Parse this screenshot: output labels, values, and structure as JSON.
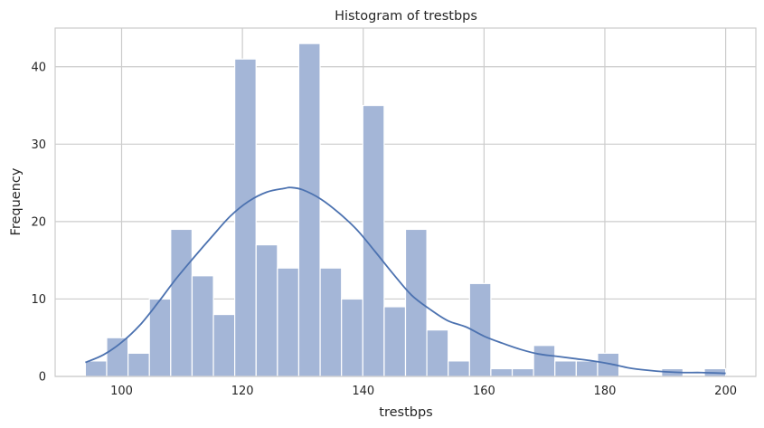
{
  "chart_data": {
    "type": "bar",
    "title": "Histogram of trestbps",
    "xlabel": "trestbps",
    "ylabel": "Frequency",
    "xlim": [
      89,
      205
    ],
    "ylim": [
      0,
      45
    ],
    "xticks": [
      100,
      120,
      140,
      160,
      180,
      200
    ],
    "yticks": [
      0,
      10,
      20,
      30,
      40
    ],
    "grid": true,
    "bin_width": 3.533,
    "bins": [
      {
        "x0": 94.0,
        "count": 2
      },
      {
        "x0": 97.53,
        "count": 5
      },
      {
        "x0": 101.07,
        "count": 3
      },
      {
        "x0": 104.6,
        "count": 10
      },
      {
        "x0": 108.13,
        "count": 19
      },
      {
        "x0": 111.67,
        "count": 13
      },
      {
        "x0": 115.2,
        "count": 8
      },
      {
        "x0": 118.73,
        "count": 41
      },
      {
        "x0": 122.27,
        "count": 17
      },
      {
        "x0": 125.8,
        "count": 14
      },
      {
        "x0": 129.33,
        "count": 43
      },
      {
        "x0": 132.87,
        "count": 14
      },
      {
        "x0": 136.4,
        "count": 10
      },
      {
        "x0": 139.93,
        "count": 35
      },
      {
        "x0": 143.47,
        "count": 9
      },
      {
        "x0": 147.0,
        "count": 19
      },
      {
        "x0": 150.53,
        "count": 6
      },
      {
        "x0": 154.07,
        "count": 2
      },
      {
        "x0": 157.6,
        "count": 12
      },
      {
        "x0": 161.13,
        "count": 1
      },
      {
        "x0": 164.67,
        "count": 1
      },
      {
        "x0": 168.2,
        "count": 4
      },
      {
        "x0": 171.73,
        "count": 2
      },
      {
        "x0": 175.27,
        "count": 2
      },
      {
        "x0": 178.8,
        "count": 3
      },
      {
        "x0": 182.33,
        "count": 0
      },
      {
        "x0": 185.87,
        "count": 0
      },
      {
        "x0": 189.4,
        "count": 1
      },
      {
        "x0": 192.93,
        "count": 0
      },
      {
        "x0": 196.47,
        "count": 1
      }
    ],
    "kde": {
      "x": [
        94,
        97,
        100,
        103,
        106,
        109,
        112,
        115,
        118,
        121,
        124,
        127,
        128,
        130,
        133,
        136,
        139,
        142,
        145,
        148,
        151,
        154,
        157,
        160,
        163,
        166,
        169,
        172,
        175,
        178,
        181,
        184,
        187,
        190,
        193,
        196,
        200
      ],
      "y": [
        1.8,
        2.8,
        4.4,
        6.6,
        9.5,
        12.6,
        15.4,
        18.1,
        20.7,
        22.6,
        23.8,
        24.3,
        24.4,
        24.1,
        22.9,
        21.1,
        18.9,
        16.1,
        13.2,
        10.5,
        8.7,
        7.2,
        6.4,
        5.2,
        4.3,
        3.5,
        2.9,
        2.6,
        2.3,
        2.0,
        1.6,
        1.1,
        0.8,
        0.6,
        0.5,
        0.5,
        0.4
      ]
    },
    "colors": {
      "bar_fill": "#a4b6d7",
      "bar_edge": "#ffffff",
      "kde_line": "#4c72b0",
      "grid": "#cccccc",
      "frame": "#cccccc"
    }
  }
}
